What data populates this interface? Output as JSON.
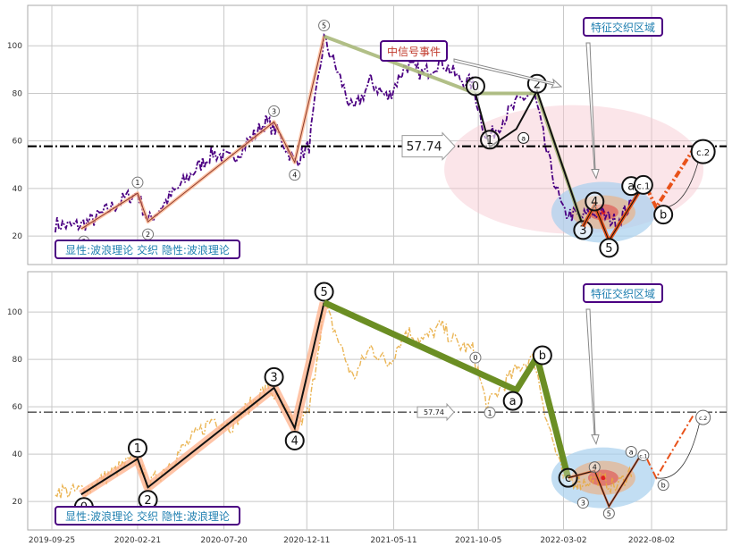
{
  "colors": {
    "grid": "#c8c8c8",
    "panel_border": "#aaaaaa",
    "price_top": "#4b0082",
    "price_bottom": "#e8a93a",
    "wave_fill": "#ffb08a",
    "wave_green": "#6b8e23",
    "wave_olive": "#a8b87a",
    "wave_orange": "#e8521a",
    "annot_border": "#4b0082",
    "annot_text_blue": "#1f7fb0",
    "annot_text_red": "#c0392b",
    "ellipse_pink": "#f7c6cf",
    "ellipse_blue": "#a8d0ee",
    "ellipse_tan": "#e8b48a",
    "ellipse_red": "#e04040"
  },
  "x_axis": {
    "tick_labels": [
      "2019-09-25",
      "2020-02-21",
      "2020-07-20",
      "2020-12-11",
      "2021-05-11",
      "2021-10-05",
      "2022-03-02",
      "2022-08-02"
    ]
  },
  "y_axis": {
    "tick_labels": [
      "20",
      "40",
      "60",
      "80",
      "100"
    ]
  },
  "labels": {
    "legend_box": "显性:波浪理论 交织 隐性:波浪理论",
    "feature_zone": "特征交织区域",
    "signal_event": "中信号事件",
    "level_value": "57.74"
  },
  "chart_data": [
    {
      "type": "line",
      "panel": "top",
      "ylim": [
        8,
        117
      ],
      "grid": true,
      "horizontal_line": 57.74,
      "x_tick_labels": [
        "2019-09-25",
        "2020-02-21",
        "2020-07-20",
        "2020-12-11",
        "2021-05-11",
        "2021-10-05",
        "2022-03-02",
        "2022-08-02"
      ],
      "y_ticks": [
        20,
        40,
        60,
        80,
        100
      ],
      "price_series": [
        {
          "x": "2019-10-01",
          "y": 25
        },
        {
          "x": "2019-11-01",
          "y": 24
        },
        {
          "x": "2019-12-01",
          "y": 26
        },
        {
          "x": "2020-01-01",
          "y": 31
        },
        {
          "x": "2020-02-01",
          "y": 36
        },
        {
          "x": "2020-02-21",
          "y": 38
        },
        {
          "x": "2020-03-10",
          "y": 26
        },
        {
          "x": "2020-04-01",
          "y": 32
        },
        {
          "x": "2020-05-01",
          "y": 40
        },
        {
          "x": "2020-06-01",
          "y": 48
        },
        {
          "x": "2020-07-01",
          "y": 55
        },
        {
          "x": "2020-08-01",
          "y": 52
        },
        {
          "x": "2020-09-01",
          "y": 60
        },
        {
          "x": "2020-10-01",
          "y": 68
        },
        {
          "x": "2020-10-20",
          "y": 64
        },
        {
          "x": "2020-11-20",
          "y": 51
        },
        {
          "x": "2020-12-15",
          "y": 58
        },
        {
          "x": "2021-01-10",
          "y": 103
        },
        {
          "x": "2021-02-01",
          "y": 90
        },
        {
          "x": "2021-03-01",
          "y": 72
        },
        {
          "x": "2021-04-01",
          "y": 85
        },
        {
          "x": "2021-05-01",
          "y": 78
        },
        {
          "x": "2021-06-01",
          "y": 92
        },
        {
          "x": "2021-07-01",
          "y": 88
        },
        {
          "x": "2021-08-01",
          "y": 94
        },
        {
          "x": "2021-09-01",
          "y": 86
        },
        {
          "x": "2021-09-25",
          "y": 84
        },
        {
          "x": "2021-10-20",
          "y": 60
        },
        {
          "x": "2021-11-20",
          "y": 70
        },
        {
          "x": "2021-12-20",
          "y": 78
        },
        {
          "x": "2022-01-10",
          "y": 80
        },
        {
          "x": "2022-02-01",
          "y": 55
        },
        {
          "x": "2022-03-01",
          "y": 30
        },
        {
          "x": "2022-04-01",
          "y": 28
        },
        {
          "x": "2022-05-01",
          "y": 30
        },
        {
          "x": "2022-06-01",
          "y": 26
        },
        {
          "x": "2022-07-01",
          "y": 34
        }
      ],
      "explicit_wave": [
        {
          "label": "0",
          "x": "2019-11-15",
          "y": 23
        },
        {
          "label": "1",
          "x": "2020-02-21",
          "y": 38
        },
        {
          "label": "2",
          "x": "2020-03-10",
          "y": 26
        },
        {
          "label": "3",
          "x": "2020-10-15",
          "y": 68
        },
        {
          "label": "4",
          "x": "2020-11-20",
          "y": 51
        },
        {
          "label": "5",
          "x": "2021-01-10",
          "y": 104
        }
      ],
      "hidden_wave": [
        {
          "label": "0",
          "x": "2021-09-30",
          "y": 80
        },
        {
          "label": "1",
          "x": "2021-10-25",
          "y": 57.5
        },
        {
          "label": "a",
          "x": "2021-12-10",
          "y": 65
        },
        {
          "label": "2",
          "x": "2022-01-15",
          "y": 81
        },
        {
          "label": "3",
          "x": "2022-04-05",
          "y": 24
        }
      ],
      "orange_wave": [
        {
          "label": "3",
          "x": "2022-04-05",
          "y": 24
        },
        {
          "label": "4",
          "x": "2022-04-25",
          "y": 33
        },
        {
          "label": "5",
          "x": "2022-05-20",
          "y": 18
        },
        {
          "label": "a",
          "x": "2022-07-10",
          "y": 38
        },
        {
          "label": "b",
          "x": "2022-08-10",
          "y": 32
        },
        {
          "label": "c.1",
          "x": "2022-07-25",
          "y": 40
        },
        {
          "label": "c.2",
          "x": "2022-10-15",
          "y": 57
        }
      ]
    },
    {
      "type": "line",
      "panel": "bottom",
      "ylim": [
        8,
        117
      ],
      "grid": true,
      "horizontal_line": 57.74,
      "x_tick_labels": [
        "2019-09-25",
        "2020-02-21",
        "2020-07-20",
        "2020-12-11",
        "2021-05-11",
        "2021-10-05",
        "2022-03-02",
        "2022-08-02"
      ],
      "y_ticks": [
        20,
        40,
        60,
        80,
        100
      ],
      "explicit_wave": [
        {
          "label": "0",
          "x": "2019-11-15",
          "y": 23
        },
        {
          "label": "1",
          "x": "2020-02-21",
          "y": 38
        },
        {
          "label": "2",
          "x": "2020-03-10",
          "y": 26
        },
        {
          "label": "3",
          "x": "2020-10-15",
          "y": 68
        },
        {
          "label": "4",
          "x": "2020-11-20",
          "y": 51
        },
        {
          "label": "5",
          "x": "2021-01-10",
          "y": 104
        }
      ],
      "green_wave": [
        {
          "label": "5",
          "x": "2021-01-10",
          "y": 104
        },
        {
          "label": "a",
          "x": "2021-12-10",
          "y": 67
        },
        {
          "label": "b",
          "x": "2022-01-15",
          "y": 81
        },
        {
          "label": "c",
          "x": "2022-03-10",
          "y": 30
        }
      ],
      "orange_wave": [
        {
          "label": "c",
          "x": "2022-03-10",
          "y": 30
        },
        {
          "label": "4",
          "x": "2022-04-25",
          "y": 33
        },
        {
          "label": "5",
          "x": "2022-05-20",
          "y": 18
        },
        {
          "label": "a",
          "x": "2022-07-10",
          "y": 38
        },
        {
          "label": "b",
          "x": "2022-08-10",
          "y": 30
        },
        {
          "label": "c.1",
          "x": "2022-07-25",
          "y": 38
        },
        {
          "label": "c.2",
          "x": "2022-10-15",
          "y": 57
        }
      ]
    }
  ]
}
